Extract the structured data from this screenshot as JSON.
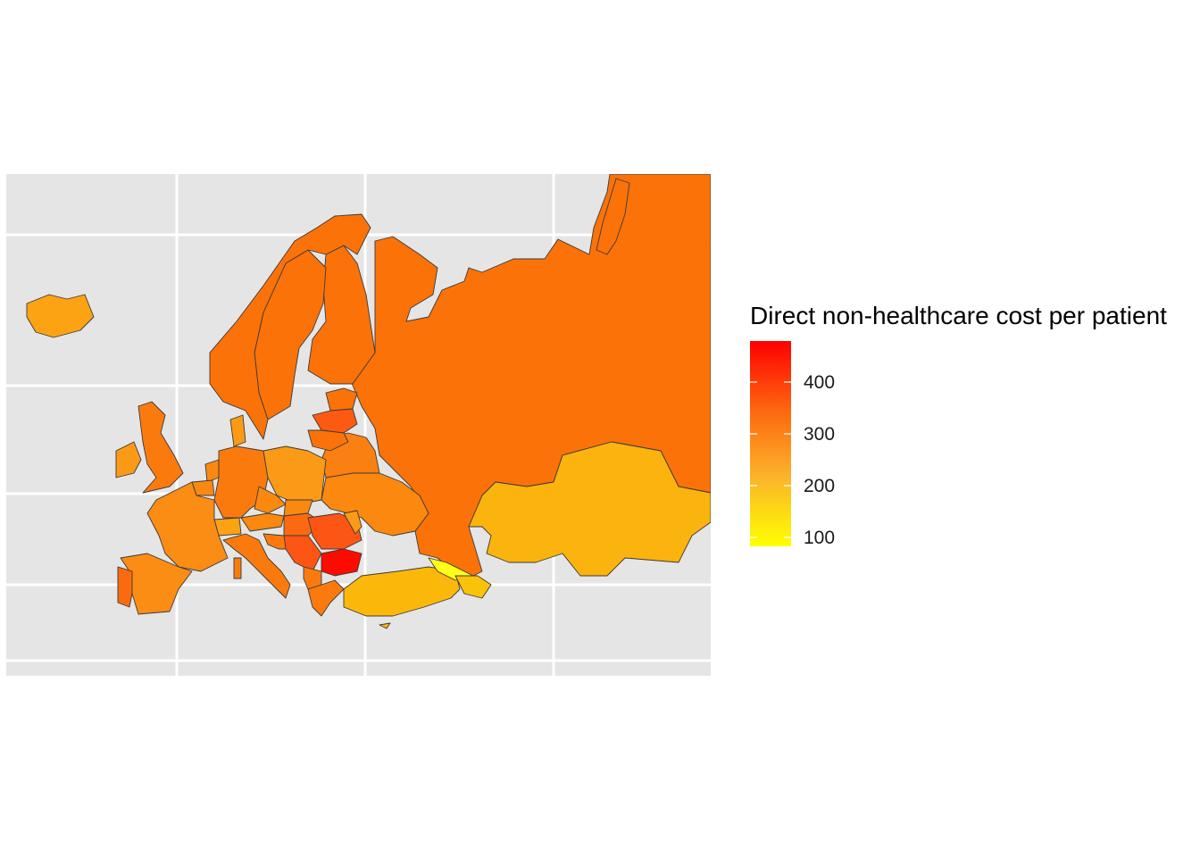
{
  "legend": {
    "title": "Direct non-healthcare cost per patient",
    "ticks": [
      "400",
      "300",
      "200",
      "100"
    ],
    "tick_values": [
      400,
      300,
      200,
      100
    ],
    "min": 70,
    "max": 480,
    "colors": {
      "low": "#ffff00",
      "mid": "#fbb12a",
      "high": "#ff0000"
    }
  },
  "colors": {
    "panel_bg": "#e5e5e5",
    "grid": "#ffffff",
    "border": "#333333"
  },
  "chart_data": {
    "type": "choropleth",
    "value_label": "Direct non-healthcare cost per patient",
    "regions": [
      {
        "name": "Iceland",
        "value": 250
      },
      {
        "name": "Norway",
        "value": 360
      },
      {
        "name": "Sweden",
        "value": 360
      },
      {
        "name": "Finland",
        "value": 360
      },
      {
        "name": "Russia",
        "value": 350
      },
      {
        "name": "United Kingdom",
        "value": 330
      },
      {
        "name": "Ireland",
        "value": 280
      },
      {
        "name": "France",
        "value": 300
      },
      {
        "name": "Spain",
        "value": 300
      },
      {
        "name": "Portugal",
        "value": 340
      },
      {
        "name": "Germany",
        "value": 350
      },
      {
        "name": "Poland",
        "value": 290
      },
      {
        "name": "Italy",
        "value": 320
      },
      {
        "name": "Bulgaria",
        "value": 480
      },
      {
        "name": "Romania",
        "value": 400
      },
      {
        "name": "Ukraine",
        "value": 330
      },
      {
        "name": "Belarus",
        "value": 340
      },
      {
        "name": "Turkey",
        "value": 230
      },
      {
        "name": "Kazakhstan",
        "value": 230
      },
      {
        "name": "Georgia",
        "value": 100
      },
      {
        "name": "Latvia",
        "value": 380
      }
    ]
  }
}
